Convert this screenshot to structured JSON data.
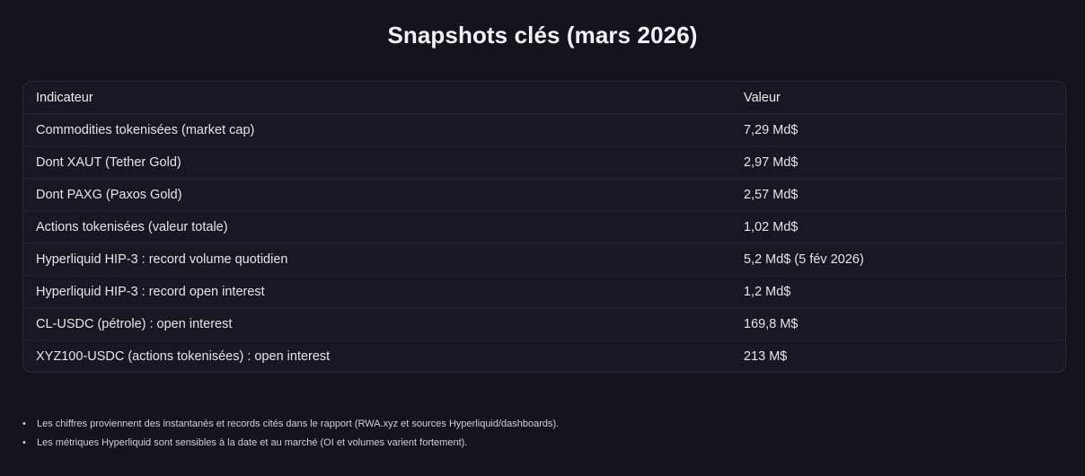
{
  "page": {
    "title": "Snapshots clés (mars 2026)"
  },
  "table": {
    "headers": [
      "Indicateur",
      "Valeur"
    ],
    "rows": [
      [
        "Commodities tokenisées (market cap)",
        "7,29 Md$"
      ],
      [
        "Dont XAUT (Tether Gold)",
        "2,97 Md$"
      ],
      [
        "Dont PAXG (Paxos Gold)",
        "2,57 Md$"
      ],
      [
        "Actions tokenisées (valeur totale)",
        "1,02 Md$"
      ],
      [
        "Hyperliquid HIP-3 : record volume quotidien",
        "5,2 Md$ (5 fév 2026)"
      ],
      [
        "Hyperliquid HIP-3 : record open interest",
        "1,2 Md$"
      ],
      [
        "CL-USDC (pétrole) : open interest",
        "169,8 M$"
      ],
      [
        "XYZ100-USDC (actions tokenisées) : open interest",
        "213 M$"
      ]
    ]
  },
  "notes": [
    "Les chiffres proviennent des instantanés et records cités dans le rapport (RWA.xyz et sources Hyperliquid/dashboards).",
    "Les métriques Hyperliquid sont sensibles à la date et au marché (OI et volumes varient fortement)."
  ],
  "colors": {
    "background": "#14151c",
    "card": "#171821",
    "border": "#272a36",
    "text": "#e4e5ec"
  }
}
